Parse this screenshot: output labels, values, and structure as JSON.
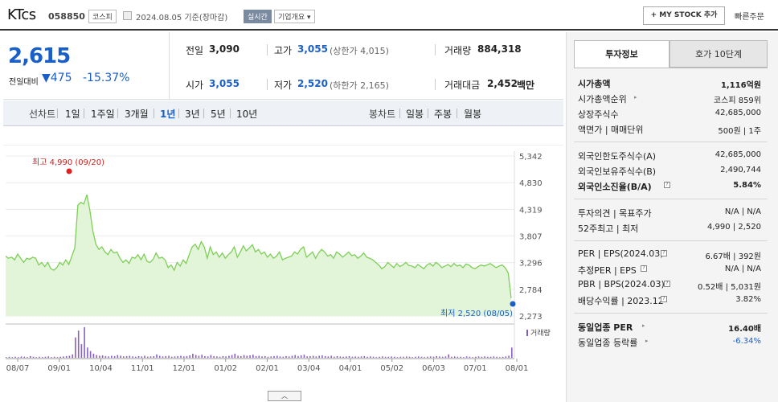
{
  "header": {
    "title": "KTcs",
    "code": "058850",
    "market": "코스피",
    "date_text": "2024.08.05  기준(장마감)",
    "realtime_label": "실시간",
    "profile_label": "기업개요 ▾",
    "mystock_label": "+ MY STOCK 추가",
    "quick_order_label": "빠른주문"
  },
  "price": {
    "current": "2,615",
    "change_label": "전일대비",
    "change_value": "▼475",
    "change_pct": "-15.37%"
  },
  "quote": {
    "prev_label": "전일",
    "prev_value": "3,090",
    "high_label": "고가",
    "high_value": "3,055",
    "upper_limit": "(상한가 4,015)",
    "volume_label": "거래량",
    "volume_value": "884,318",
    "open_label": "시가",
    "open_value": "3,055",
    "low_label": "저가",
    "low_value": "2,520",
    "lower_limit": "(하한가 2,165)",
    "amount_label": "거래대금",
    "amount_value": "2,452",
    "amount_unit": "백만"
  },
  "periods": {
    "line_label": "선차트",
    "items": [
      "1일",
      "1주일",
      "3개월",
      "1년",
      "3년",
      "5년",
      "10년"
    ],
    "selected": "1년",
    "candle_label": "봉차트",
    "candle_items": [
      "일봉",
      "주봉",
      "월봉"
    ]
  },
  "chart_data": {
    "type": "area",
    "yticks": [
      5342,
      4830,
      4319,
      3807,
      3296,
      2784,
      2273
    ],
    "ylim": [
      2273,
      5342
    ],
    "xticks": [
      "08/07",
      "09/01",
      "10/04",
      "11/01",
      "12/01",
      "01/02",
      "02/01",
      "03/04",
      "04/01",
      "05/02",
      "06/03",
      "07/01",
      "08/01"
    ],
    "high_annotation": "최고 4,990 (09/20)",
    "low_annotation": "최저 2,520 (08/05)",
    "volume_legend": "거래량",
    "series": [
      {
        "values": [
          3420,
          3380,
          3400,
          3350,
          3460,
          3380,
          3300,
          3380,
          3360,
          3400,
          3380,
          3250,
          3300,
          3220,
          3300,
          3180,
          3150,
          3200,
          3300,
          3250,
          3350,
          3260,
          3420,
          3580,
          4400,
          4450,
          4420,
          4600,
          4300,
          3900,
          3650,
          3550,
          3600,
          3500,
          3450,
          3550,
          3480,
          3500,
          3380,
          3300,
          3350,
          3280,
          3400,
          3380,
          3450,
          3350,
          3460,
          3320,
          3300,
          3360,
          3480,
          3380,
          3400,
          3350,
          3200,
          3250,
          3150,
          3300,
          3230,
          3350,
          3280,
          3450,
          3600,
          3650,
          3550,
          3700,
          3600,
          3380,
          3600,
          3450,
          3500,
          3400,
          3480,
          3380,
          3450,
          3500,
          3600,
          3400,
          3500,
          3620,
          3520,
          3580,
          3640,
          3500,
          3550,
          3460,
          3500,
          3400,
          3460,
          3380,
          3420,
          3500,
          3350,
          3380,
          3400,
          3420,
          3500,
          3460,
          3550,
          3600,
          3400,
          3450,
          3500,
          3380,
          3480,
          3550,
          3500,
          3420,
          3450,
          3380,
          3500,
          3460,
          3400,
          3450,
          3500,
          3430,
          3450,
          3380,
          3420,
          3480,
          3400,
          3380,
          3350,
          3300,
          3250,
          3180,
          3220,
          3300,
          3250,
          3200,
          3280,
          3220,
          3250,
          3300,
          3240,
          3230,
          3200,
          3260,
          3220,
          3180,
          3250,
          3280,
          3230,
          3300,
          3260,
          3200,
          3230,
          3260,
          3220,
          3280,
          3230,
          3250,
          3200,
          3270,
          3250,
          3200,
          3180,
          3220,
          3250,
          3230,
          3250,
          3280,
          3240,
          3200,
          3230,
          3250,
          3200,
          3100,
          2615
        ]
      }
    ],
    "volume": [
      2,
      3,
      2,
      3,
      2,
      4,
      3,
      2,
      5,
      3,
      2,
      3,
      2,
      3,
      4,
      2,
      3,
      2,
      3,
      4,
      5,
      6,
      10,
      60,
      80,
      40,
      90,
      30,
      20,
      12,
      8,
      6,
      7,
      5,
      4,
      6,
      5,
      8,
      6,
      4,
      5,
      6,
      4,
      3,
      5,
      4,
      6,
      3,
      4,
      5,
      10,
      6,
      4,
      5,
      6,
      3,
      4,
      5,
      6,
      4,
      5,
      7,
      12,
      8,
      6,
      9,
      5,
      4,
      8,
      5,
      4,
      3,
      5,
      4,
      6,
      8,
      12,
      6,
      5,
      8,
      6,
      7,
      9,
      5,
      6,
      4,
      5,
      3,
      4,
      5,
      6,
      4,
      3,
      5,
      4,
      6,
      8,
      5,
      7,
      9,
      4,
      5,
      6,
      4,
      6,
      7,
      5,
      4,
      6,
      3,
      5,
      4,
      3,
      4,
      5,
      3,
      4,
      3,
      4,
      5,
      3,
      4,
      3,
      2,
      3,
      4,
      3,
      3,
      4,
      3,
      2,
      3,
      3,
      4,
      3,
      2,
      3,
      4,
      3,
      2,
      3,
      4,
      3,
      5,
      4,
      3,
      4,
      10,
      3,
      4,
      3,
      3,
      2,
      4,
      3,
      2,
      3,
      4,
      3,
      4,
      3,
      3,
      4,
      3,
      2,
      3,
      4,
      6,
      30
    ]
  },
  "chart_toggle": "︿",
  "tabs": {
    "invest": "투자정보",
    "hoga": "호가 10단계"
  },
  "info": {
    "market_cap_label": "시가총액",
    "market_cap": "1,116억원",
    "rank_label": "시가총액순위",
    "rank": "코스피 859위",
    "shares_label": "상장주식수",
    "shares": "42,685,000",
    "par_label": "액면가 | 매매단위",
    "par": "500원 | 1주",
    "foreign_limit_label": "외국인한도주식수(A)",
    "foreign_limit": "42,685,000",
    "foreign_hold_label": "외국인보유주식수(B)",
    "foreign_hold": "2,490,744",
    "foreign_rate_label": "외국인소진율(B/A)",
    "foreign_rate": "5.84%",
    "opinion_label": "투자의견 | 목표주가",
    "opinion": "N/A | N/A",
    "range_label": "52주최고 | 최저",
    "range": "4,990 | 2,520",
    "per_label": "PER | EPS(2024.03)",
    "per": "6.67배 | 392원",
    "est_label": "추정PER | EPS",
    "est": "N/A | N/A",
    "pbr_label": "PBR | BPS(2024.03)",
    "pbr": "0.52배 | 5,031원",
    "div_label": "배당수익률 | 2023.12",
    "div": "3.82%",
    "ind_per_label": "동일업종 PER",
    "ind_per": "16.40배",
    "ind_chg_label": "동일업종 등락률",
    "ind_chg": "-6.34%"
  }
}
